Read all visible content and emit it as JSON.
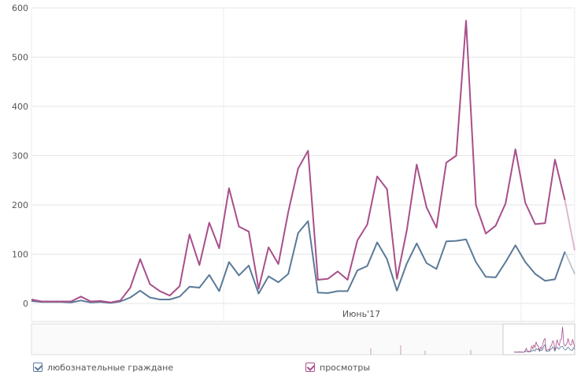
{
  "chart_data": {
    "type": "line",
    "ylim": [
      0,
      600
    ],
    "yticks": [
      "0",
      "100",
      "200",
      "300",
      "400",
      "500",
      "600"
    ],
    "xlabel_marker": "Июнь'17",
    "grid": true,
    "legend_position": "bottom",
    "series": [
      {
        "name": "любознательные граждане",
        "color": "#5b7a99",
        "values": [
          5,
          3,
          3,
          3,
          2,
          6,
          2,
          3,
          1,
          4,
          12,
          26,
          12,
          8,
          8,
          14,
          34,
          32,
          58,
          25,
          84,
          57,
          77,
          20,
          55,
          43,
          60,
          143,
          167,
          22,
          21,
          25,
          25,
          67,
          76,
          124,
          90,
          26,
          81,
          122,
          82,
          70,
          126,
          127,
          130,
          84,
          54,
          53,
          84,
          118,
          84,
          60,
          46,
          49,
          105,
          60
        ]
      },
      {
        "name": "просмотры",
        "color": "#a84f8a",
        "values": [
          8,
          4,
          4,
          4,
          4,
          14,
          4,
          5,
          2,
          6,
          32,
          90,
          39,
          25,
          16,
          35,
          140,
          78,
          164,
          112,
          234,
          156,
          146,
          30,
          114,
          80,
          186,
          274,
          310,
          48,
          50,
          65,
          48,
          128,
          160,
          258,
          232,
          50,
          148,
          282,
          195,
          154,
          286,
          300,
          574,
          200,
          142,
          158,
          203,
          313,
          204,
          161,
          163,
          292,
          210,
          108
        ]
      }
    ]
  },
  "legend": [
    {
      "label": "любознательные граждане",
      "checked": true,
      "color": "#5b7a99"
    },
    {
      "label": "просмотры",
      "checked": true,
      "color": "#a84f8a"
    }
  ]
}
